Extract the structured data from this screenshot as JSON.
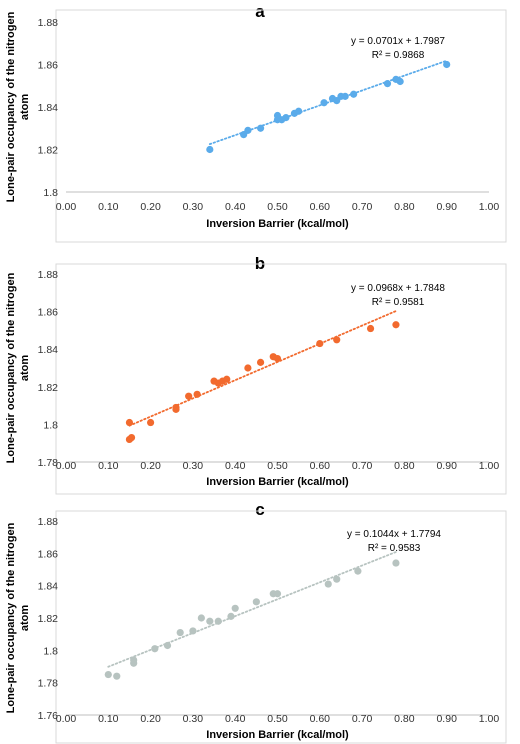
{
  "chart_data": [
    {
      "type": "scatter",
      "panel_label": "a",
      "xlabel": "Inversion Barrier (kcal/mol)",
      "ylabel": "Lone-pair occupancy of the nitrogen atom",
      "xlim": [
        0,
        1.0
      ],
      "ylim": [
        1.8,
        1.88
      ],
      "xticks": [
        "0.00",
        "0.10",
        "0.20",
        "0.30",
        "0.40",
        "0.50",
        "0.60",
        "0.70",
        "0.80",
        "0.90",
        "1.00"
      ],
      "yticks": [
        "1.8",
        "1.82",
        "1.84",
        "1.86",
        "1.88"
      ],
      "grid": false,
      "color": "#5aabea",
      "equation": "y = 0.0701x + 1.7987",
      "r2": "R² = 0.9868",
      "trendline": {
        "slope": 0.0701,
        "intercept": 1.7987,
        "x_range": [
          0.34,
          0.9
        ]
      },
      "points": [
        {
          "x": 0.34,
          "y": 1.82
        },
        {
          "x": 0.42,
          "y": 1.827
        },
        {
          "x": 0.43,
          "y": 1.829
        },
        {
          "x": 0.46,
          "y": 1.83
        },
        {
          "x": 0.5,
          "y": 1.834
        },
        {
          "x": 0.5,
          "y": 1.836
        },
        {
          "x": 0.51,
          "y": 1.834
        },
        {
          "x": 0.52,
          "y": 1.835
        },
        {
          "x": 0.54,
          "y": 1.837
        },
        {
          "x": 0.55,
          "y": 1.838
        },
        {
          "x": 0.61,
          "y": 1.842
        },
        {
          "x": 0.63,
          "y": 1.844
        },
        {
          "x": 0.64,
          "y": 1.843
        },
        {
          "x": 0.65,
          "y": 1.845
        },
        {
          "x": 0.66,
          "y": 1.845
        },
        {
          "x": 0.68,
          "y": 1.846
        },
        {
          "x": 0.76,
          "y": 1.851
        },
        {
          "x": 0.78,
          "y": 1.853
        },
        {
          "x": 0.79,
          "y": 1.852
        },
        {
          "x": 0.9,
          "y": 1.86
        }
      ]
    },
    {
      "type": "scatter",
      "panel_label": "b",
      "xlabel": "Inversion Barrier (kcal/mol)",
      "ylabel": "Lone-pair occupancy of the nitrogen atom",
      "xlim": [
        0,
        1.0
      ],
      "ylim": [
        1.78,
        1.88
      ],
      "xticks": [
        "0.00",
        "0.10",
        "0.20",
        "0.30",
        "0.40",
        "0.50",
        "0.60",
        "0.70",
        "0.80",
        "0.90",
        "1.00"
      ],
      "yticks": [
        "1.78",
        "1.8",
        "1.82",
        "1.84",
        "1.86",
        "1.88"
      ],
      "grid": false,
      "color": "#f26a2e",
      "equation": "y = 0.0968x + 1.7848",
      "r2": "R² = 0.9581",
      "trendline": {
        "slope": 0.0968,
        "intercept": 1.7848,
        "x_range": [
          0.15,
          0.78
        ]
      },
      "points": [
        {
          "x": 0.15,
          "y": 1.792
        },
        {
          "x": 0.15,
          "y": 1.801
        },
        {
          "x": 0.155,
          "y": 1.793
        },
        {
          "x": 0.2,
          "y": 1.801
        },
        {
          "x": 0.26,
          "y": 1.808
        },
        {
          "x": 0.26,
          "y": 1.809
        },
        {
          "x": 0.29,
          "y": 1.815
        },
        {
          "x": 0.31,
          "y": 1.816
        },
        {
          "x": 0.35,
          "y": 1.823
        },
        {
          "x": 0.36,
          "y": 1.822
        },
        {
          "x": 0.37,
          "y": 1.823
        },
        {
          "x": 0.38,
          "y": 1.824
        },
        {
          "x": 0.43,
          "y": 1.83
        },
        {
          "x": 0.46,
          "y": 1.833
        },
        {
          "x": 0.49,
          "y": 1.836
        },
        {
          "x": 0.5,
          "y": 1.835
        },
        {
          "x": 0.6,
          "y": 1.843
        },
        {
          "x": 0.64,
          "y": 1.845
        },
        {
          "x": 0.72,
          "y": 1.851
        },
        {
          "x": 0.78,
          "y": 1.853
        }
      ]
    },
    {
      "type": "scatter",
      "panel_label": "c",
      "xlabel": "Inversion Barrier (kcal/mol)",
      "ylabel": "Lone-pair occupancy of the nitrogen atom",
      "xlim": [
        0,
        1.0
      ],
      "ylim": [
        1.76,
        1.88
      ],
      "xticks": [
        "0.00",
        "0.10",
        "0.20",
        "0.30",
        "0.40",
        "0.50",
        "0.60",
        "0.70",
        "0.80",
        "0.90",
        "1.00"
      ],
      "yticks": [
        "1.76",
        "1.78",
        "1.8",
        "1.82",
        "1.84",
        "1.86",
        "1.88"
      ],
      "grid": false,
      "color": "#b7c3c0",
      "equation": "y = 0.1044x + 1.7794",
      "r2": "R² = 0.9583",
      "trendline": {
        "slope": 0.1044,
        "intercept": 1.7794,
        "x_range": [
          0.1,
          0.78
        ]
      },
      "points": [
        {
          "x": 0.1,
          "y": 1.785
        },
        {
          "x": 0.12,
          "y": 1.784
        },
        {
          "x": 0.16,
          "y": 1.792
        },
        {
          "x": 0.16,
          "y": 1.794
        },
        {
          "x": 0.21,
          "y": 1.801
        },
        {
          "x": 0.24,
          "y": 1.803
        },
        {
          "x": 0.27,
          "y": 1.811
        },
        {
          "x": 0.3,
          "y": 1.812
        },
        {
          "x": 0.32,
          "y": 1.82
        },
        {
          "x": 0.34,
          "y": 1.818
        },
        {
          "x": 0.36,
          "y": 1.818
        },
        {
          "x": 0.39,
          "y": 1.821
        },
        {
          "x": 0.4,
          "y": 1.826
        },
        {
          "x": 0.45,
          "y": 1.83
        },
        {
          "x": 0.49,
          "y": 1.835
        },
        {
          "x": 0.5,
          "y": 1.835
        },
        {
          "x": 0.62,
          "y": 1.841
        },
        {
          "x": 0.64,
          "y": 1.844
        },
        {
          "x": 0.69,
          "y": 1.849
        },
        {
          "x": 0.78,
          "y": 1.854
        }
      ]
    }
  ]
}
